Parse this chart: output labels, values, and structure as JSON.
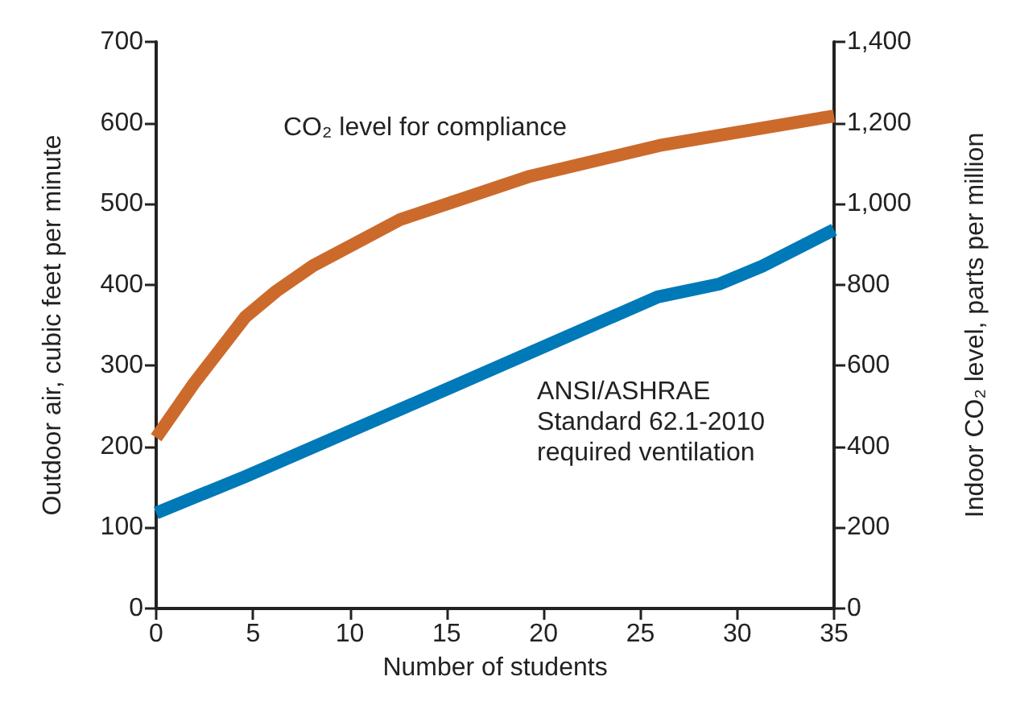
{
  "chart_data": {
    "type": "line",
    "xlabel": "Number of students",
    "ylabel": "Outdoor air, cubic feet per minute",
    "y2label": "Indoor CO₂ level, parts per million",
    "series": [
      {
        "name": "CO₂ level for compliance",
        "color": "#cc6a2c",
        "axis": "y2",
        "x": [
          0,
          1.95,
          4.6,
          6.2,
          8.1,
          12.6,
          19.3,
          26,
          35
        ],
        "values": [
          422,
          556,
          720,
          784,
          847,
          961,
          1068,
          1144,
          1217
        ]
      },
      {
        "name": "ANSI/ASHRAE\nStandard 62.1-2010\nrequired ventilation",
        "color": "#0079b8",
        "x": [
          0,
          4.6,
          15.3,
          25.9,
          29.1,
          31.3,
          35
        ],
        "values": [
          118,
          163,
          274,
          385,
          401,
          423,
          468
        ]
      }
    ],
    "xlim": [
      0,
      35
    ],
    "xticks": [
      0,
      5,
      10,
      15,
      20,
      25,
      30,
      35
    ],
    "ylim": [
      0,
      700
    ],
    "yticks": [
      0,
      100,
      200,
      300,
      400,
      500,
      600,
      700
    ],
    "y2lim": [
      0,
      1400
    ],
    "y2ticks": [
      0,
      {
        "value": 200,
        "label": "200"
      },
      {
        "value": 400,
        "label": "400"
      },
      {
        "value": 600,
        "label": "600"
      },
      {
        "value": 800,
        "label": "800"
      },
      {
        "value": 1000,
        "label": "1,000"
      },
      {
        "value": 1200,
        "label": "1,200"
      },
      {
        "value": 1400,
        "label": "1,400"
      }
    ],
    "grid": false,
    "legend": false,
    "marker": "none",
    "line_style": "solid"
  }
}
